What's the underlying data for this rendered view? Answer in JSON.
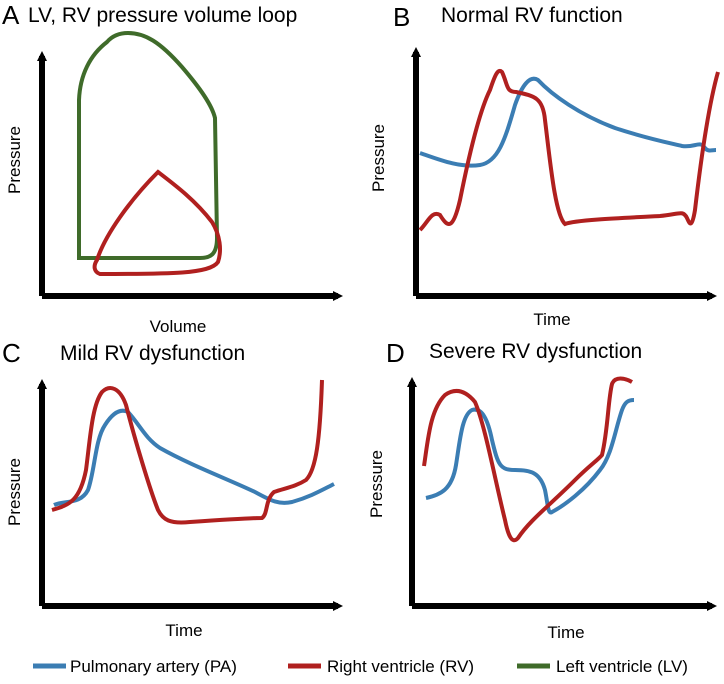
{
  "colors": {
    "pa": "#3b7db3",
    "rv": "#b0201f",
    "lv": "#3f6b2a",
    "axis": "#000000"
  },
  "panels": {
    "A": {
      "letter": "A",
      "title": "LV, RV pressure volume loop",
      "xlabel": "Volume",
      "ylabel": "Pressure"
    },
    "B": {
      "letter": "B",
      "title": "Normal RV function",
      "xlabel": "Time",
      "ylabel": "Pressure"
    },
    "C": {
      "letter": "C",
      "title": "Mild RV dysfunction",
      "xlabel": "Time",
      "ylabel": "Pressure"
    },
    "D": {
      "letter": "D",
      "title": "Severe RV dysfunction",
      "xlabel": "Time",
      "ylabel": "Pressure"
    }
  },
  "legend": {
    "pa": "Pulmonary artery (PA)",
    "rv": "Right ventricle (RV)",
    "lv": "Left ventricle (LV)"
  }
}
